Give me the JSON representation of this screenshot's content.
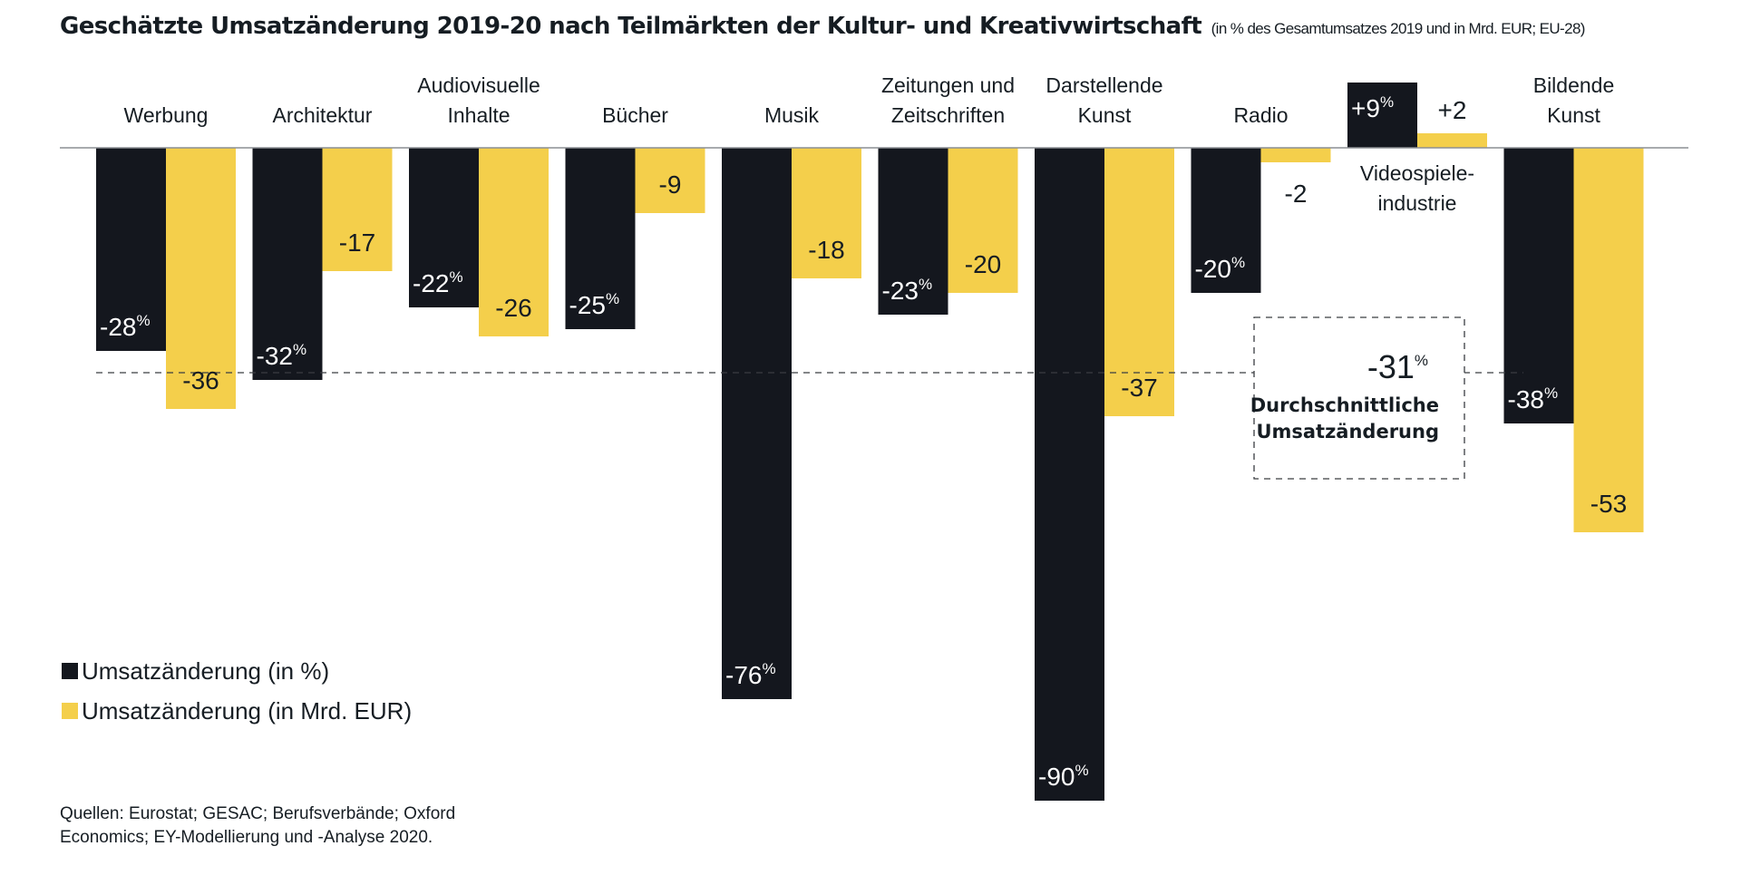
{
  "chart_data": {
    "type": "bar",
    "title": "Geschätzte Umsatzänderung 2019-20 nach Teilmärkten der Kultur- und Kreativwirtschaft",
    "subtitle": "(in % des Gesamtumsatzes 2019 und in Mrd. EUR; EU-28)",
    "categories": [
      [
        "Werbung"
      ],
      [
        "Architektur"
      ],
      [
        "Audiovisuelle",
        "Inhalte"
      ],
      [
        "Bücher"
      ],
      [
        "Musik"
      ],
      [
        "Zeitungen und",
        "Zeitschriften"
      ],
      [
        "Darstellende",
        "Kunst"
      ],
      [
        "Radio"
      ],
      [
        "Videospiele-",
        "industrie"
      ],
      [
        "Bildende",
        "Kunst"
      ]
    ],
    "series": [
      {
        "name": "Umsatzänderung (in %)",
        "color": "#14171e",
        "values": [
          -28,
          -32,
          -22,
          -25,
          -76,
          -23,
          -90,
          -20,
          9,
          -38
        ],
        "labels": [
          "-28",
          "-32",
          "-22",
          "-25",
          "-76",
          "-23",
          "-90",
          "-20",
          "+9",
          "-38"
        ],
        "label_suffix": "%"
      },
      {
        "name": "Umsatzänderung (in Mrd. EUR)",
        "color": "#f4cf4b",
        "values": [
          -36,
          -17,
          -26,
          -9,
          -18,
          -20,
          -37,
          -2,
          2,
          -53
        ],
        "labels": [
          "-36",
          "-17",
          "-26",
          "-9",
          "-18",
          "-20",
          "-37",
          "-2",
          "+2",
          "-53"
        ]
      }
    ],
    "average": {
      "value": -31,
      "label_number": "-31",
      "label_suffix": "%",
      "label_lines": [
        "Durchschnittliche",
        "Umsatzänderung"
      ]
    },
    "legend_position": "bottom-left",
    "grid": false,
    "xlabel": "",
    "ylabel": ""
  },
  "source": {
    "line1": "Quellen: Eurostat; GESAC; Berufsverbände; Oxford",
    "line2": "Economics; EY-Modellierung und -Analyse 2020."
  }
}
